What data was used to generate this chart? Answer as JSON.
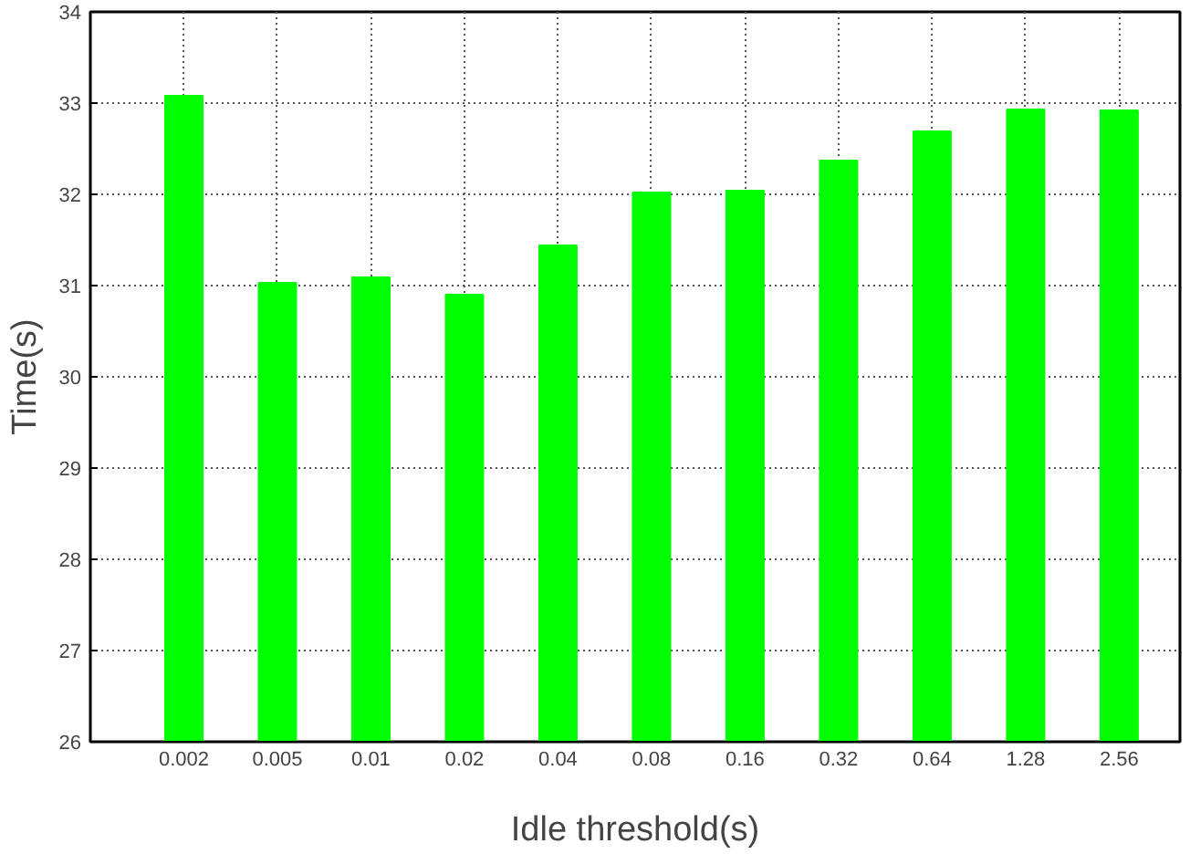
{
  "chart_data": {
    "type": "bar",
    "xlabel": "Idle threshold(s)",
    "ylabel": "Time(s)",
    "categories": [
      "0.002",
      "0.005",
      "0.01",
      "0.02",
      "0.04",
      "0.08",
      "0.16",
      "0.32",
      "0.64",
      "1.28",
      "2.56"
    ],
    "values": [
      33.08,
      31.03,
      31.09,
      30.9,
      31.44,
      32.02,
      32.04,
      32.37,
      32.69,
      32.93,
      32.92
    ],
    "color": "#00ff00",
    "ylim": [
      26,
      34
    ],
    "yticks": [
      26,
      27,
      28,
      29,
      30,
      31,
      32,
      33,
      34
    ],
    "grid": true
  }
}
